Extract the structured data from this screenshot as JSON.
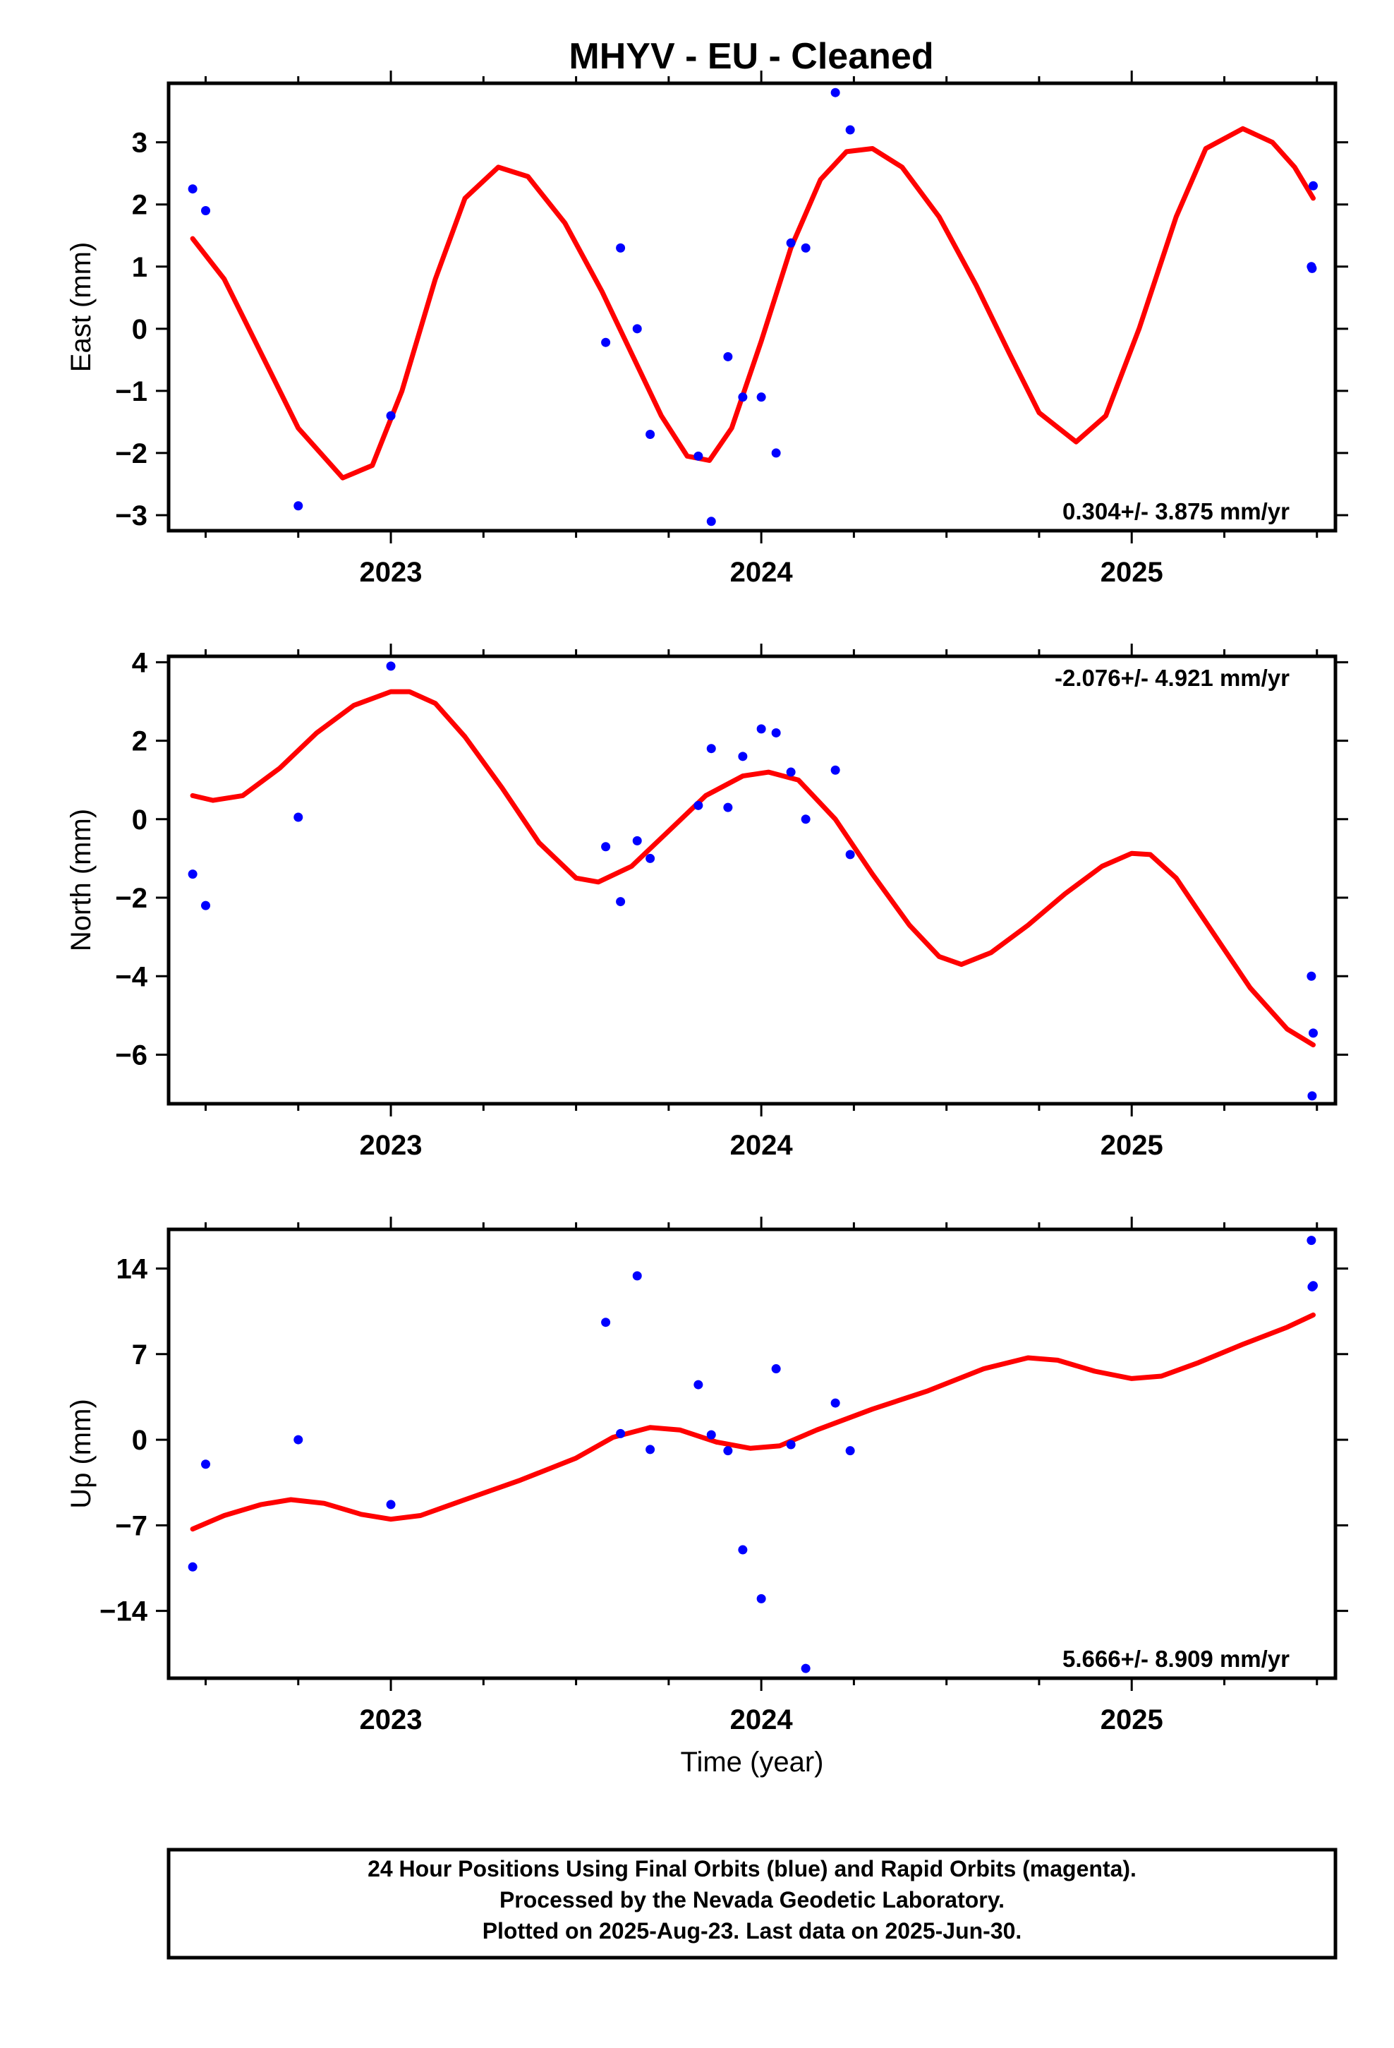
{
  "title": "MHYV  - EU - Cleaned",
  "colors": {
    "points": "#0000ff",
    "fit": "#ff0000",
    "frame": "#000000"
  },
  "chart_data": [
    {
      "type": "scatter",
      "ylabel": "East (mm)",
      "xlabel": "",
      "xlim": [
        2022.4,
        2025.55
      ],
      "ylim": [
        -3.25,
        3.95
      ],
      "xticks": [
        2023,
        2024,
        2025
      ],
      "yticks": [
        -3,
        -2,
        -1,
        0,
        1,
        2,
        3
      ],
      "rate_text": "0.304+/- 3.875 mm/yr",
      "rate_position": "bottom-right",
      "points": [
        [
          2022.465,
          2.25
        ],
        [
          2022.5,
          1.9
        ],
        [
          2022.75,
          -2.85
        ],
        [
          2023.0,
          -1.4
        ],
        [
          2023.58,
          -0.22
        ],
        [
          2023.62,
          1.3
        ],
        [
          2023.665,
          0.0
        ],
        [
          2023.7,
          -1.7
        ],
        [
          2023.83,
          -2.05
        ],
        [
          2023.865,
          -3.1
        ],
        [
          2023.91,
          -0.45
        ],
        [
          2023.95,
          -1.1
        ],
        [
          2024.0,
          -1.1
        ],
        [
          2024.04,
          -2.0
        ],
        [
          2024.08,
          1.38
        ],
        [
          2024.12,
          1.3
        ],
        [
          2024.2,
          3.8
        ],
        [
          2024.24,
          3.2
        ],
        [
          2025.485,
          1.0
        ],
        [
          2025.487,
          0.97
        ],
        [
          2025.49,
          2.3
        ]
      ],
      "fit_curve": [
        [
          2022.465,
          1.45
        ],
        [
          2022.55,
          0.8
        ],
        [
          2022.65,
          -0.4
        ],
        [
          2022.75,
          -1.6
        ],
        [
          2022.87,
          -2.4
        ],
        [
          2022.95,
          -2.2
        ],
        [
          2023.03,
          -1.0
        ],
        [
          2023.12,
          0.8
        ],
        [
          2023.2,
          2.1
        ],
        [
          2023.29,
          2.6
        ],
        [
          2023.37,
          2.45
        ],
        [
          2023.47,
          1.7
        ],
        [
          2023.57,
          0.6
        ],
        [
          2023.65,
          -0.4
        ],
        [
          2023.73,
          -1.4
        ],
        [
          2023.8,
          -2.05
        ],
        [
          2023.86,
          -2.12
        ],
        [
          2023.92,
          -1.6
        ],
        [
          2024.0,
          -0.2
        ],
        [
          2024.08,
          1.3
        ],
        [
          2024.16,
          2.4
        ],
        [
          2024.23,
          2.85
        ],
        [
          2024.3,
          2.9
        ],
        [
          2024.38,
          2.6
        ],
        [
          2024.48,
          1.8
        ],
        [
          2024.58,
          0.7
        ],
        [
          2024.67,
          -0.4
        ],
        [
          2024.75,
          -1.35
        ],
        [
          2024.85,
          -1.82
        ],
        [
          2024.93,
          -1.4
        ],
        [
          2025.02,
          0.0
        ],
        [
          2025.12,
          1.8
        ],
        [
          2025.2,
          2.9
        ],
        [
          2025.3,
          3.22
        ],
        [
          2025.38,
          3.0
        ],
        [
          2025.44,
          2.6
        ],
        [
          2025.49,
          2.1
        ]
      ]
    },
    {
      "type": "scatter",
      "ylabel": "North (mm)",
      "xlabel": "",
      "xlim": [
        2022.4,
        2025.55
      ],
      "ylim": [
        -7.25,
        4.15
      ],
      "xticks": [
        2023,
        2024,
        2025
      ],
      "yticks": [
        -6,
        -4,
        -2,
        0,
        2,
        4
      ],
      "rate_text": "-2.076+/- 4.921 mm/yr",
      "rate_position": "top-right",
      "points": [
        [
          2022.465,
          -1.4
        ],
        [
          2022.5,
          -2.2
        ],
        [
          2022.75,
          0.05
        ],
        [
          2023.0,
          3.9
        ],
        [
          2023.58,
          -0.7
        ],
        [
          2023.62,
          -2.1
        ],
        [
          2023.665,
          -0.55
        ],
        [
          2023.7,
          -1.0
        ],
        [
          2023.83,
          0.35
        ],
        [
          2023.865,
          1.8
        ],
        [
          2023.91,
          0.3
        ],
        [
          2023.95,
          1.6
        ],
        [
          2024.0,
          2.3
        ],
        [
          2024.04,
          2.2
        ],
        [
          2024.08,
          1.2
        ],
        [
          2024.12,
          0.0
        ],
        [
          2024.2,
          1.25
        ],
        [
          2024.24,
          -0.9
        ],
        [
          2025.485,
          -4.0
        ],
        [
          2025.487,
          -7.05
        ],
        [
          2025.49,
          -5.45
        ]
      ],
      "fit_curve": [
        [
          2022.465,
          0.6
        ],
        [
          2022.52,
          0.48
        ],
        [
          2022.6,
          0.6
        ],
        [
          2022.7,
          1.3
        ],
        [
          2022.8,
          2.2
        ],
        [
          2022.9,
          2.9
        ],
        [
          2023.0,
          3.25
        ],
        [
          2023.05,
          3.25
        ],
        [
          2023.12,
          2.95
        ],
        [
          2023.2,
          2.1
        ],
        [
          2023.3,
          0.8
        ],
        [
          2023.4,
          -0.6
        ],
        [
          2023.5,
          -1.5
        ],
        [
          2023.56,
          -1.6
        ],
        [
          2023.65,
          -1.2
        ],
        [
          2023.75,
          -0.3
        ],
        [
          2023.85,
          0.6
        ],
        [
          2023.95,
          1.1
        ],
        [
          2024.02,
          1.2
        ],
        [
          2024.1,
          1.0
        ],
        [
          2024.2,
          0.0
        ],
        [
          2024.3,
          -1.4
        ],
        [
          2024.4,
          -2.7
        ],
        [
          2024.48,
          -3.5
        ],
        [
          2024.54,
          -3.7
        ],
        [
          2024.62,
          -3.4
        ],
        [
          2024.72,
          -2.7
        ],
        [
          2024.82,
          -1.9
        ],
        [
          2024.92,
          -1.2
        ],
        [
          2025.0,
          -0.87
        ],
        [
          2025.05,
          -0.9
        ],
        [
          2025.12,
          -1.5
        ],
        [
          2025.22,
          -2.9
        ],
        [
          2025.32,
          -4.3
        ],
        [
          2025.42,
          -5.35
        ],
        [
          2025.49,
          -5.75
        ]
      ]
    },
    {
      "type": "scatter",
      "ylabel": "Up (mm)",
      "xlabel": "Time (year)",
      "xlim": [
        2022.4,
        2025.55
      ],
      "ylim": [
        -19.5,
        17.2
      ],
      "xticks": [
        2023,
        2024,
        2025
      ],
      "yticks": [
        -14,
        -7,
        0,
        7,
        14
      ],
      "rate_text": "5.666+/- 8.909 mm/yr",
      "rate_position": "bottom-right",
      "points": [
        [
          2022.465,
          -10.4
        ],
        [
          2022.5,
          -2.0
        ],
        [
          2022.75,
          0.0
        ],
        [
          2023.0,
          -5.3
        ],
        [
          2023.58,
          9.6
        ],
        [
          2023.62,
          0.5
        ],
        [
          2023.665,
          13.4
        ],
        [
          2023.7,
          -0.8
        ],
        [
          2023.83,
          4.5
        ],
        [
          2023.865,
          0.4
        ],
        [
          2023.91,
          -0.9
        ],
        [
          2023.95,
          -9.0
        ],
        [
          2024.0,
          -13.0
        ],
        [
          2024.04,
          5.8
        ],
        [
          2024.08,
          -0.4
        ],
        [
          2024.12,
          -18.7
        ],
        [
          2024.2,
          3.0
        ],
        [
          2024.24,
          -0.9
        ],
        [
          2025.485,
          16.3
        ],
        [
          2025.487,
          12.5
        ],
        [
          2025.49,
          12.6
        ]
      ],
      "fit_curve": [
        [
          2022.465,
          -7.3
        ],
        [
          2022.55,
          -6.2
        ],
        [
          2022.65,
          -5.3
        ],
        [
          2022.73,
          -4.9
        ],
        [
          2022.82,
          -5.2
        ],
        [
          2022.92,
          -6.1
        ],
        [
          2023.0,
          -6.5
        ],
        [
          2023.08,
          -6.2
        ],
        [
          2023.2,
          -4.9
        ],
        [
          2023.35,
          -3.3
        ],
        [
          2023.5,
          -1.5
        ],
        [
          2023.6,
          0.2
        ],
        [
          2023.7,
          1.0
        ],
        [
          2023.78,
          0.8
        ],
        [
          2023.88,
          -0.2
        ],
        [
          2023.97,
          -0.7
        ],
        [
          2024.05,
          -0.5
        ],
        [
          2024.15,
          0.8
        ],
        [
          2024.3,
          2.5
        ],
        [
          2024.45,
          4.0
        ],
        [
          2024.6,
          5.8
        ],
        [
          2024.72,
          6.7
        ],
        [
          2024.8,
          6.5
        ],
        [
          2024.9,
          5.6
        ],
        [
          2025.0,
          5.0
        ],
        [
          2025.08,
          5.2
        ],
        [
          2025.18,
          6.3
        ],
        [
          2025.3,
          7.8
        ],
        [
          2025.42,
          9.2
        ],
        [
          2025.49,
          10.2
        ]
      ]
    }
  ],
  "footer": {
    "line1": "24 Hour Positions Using Final Orbits (blue) and Rapid Orbits (magenta).",
    "line2": "Processed by the Nevada Geodetic Laboratory.",
    "line3": "Plotted on 2025-Aug-23. Last data on 2025-Jun-30."
  }
}
